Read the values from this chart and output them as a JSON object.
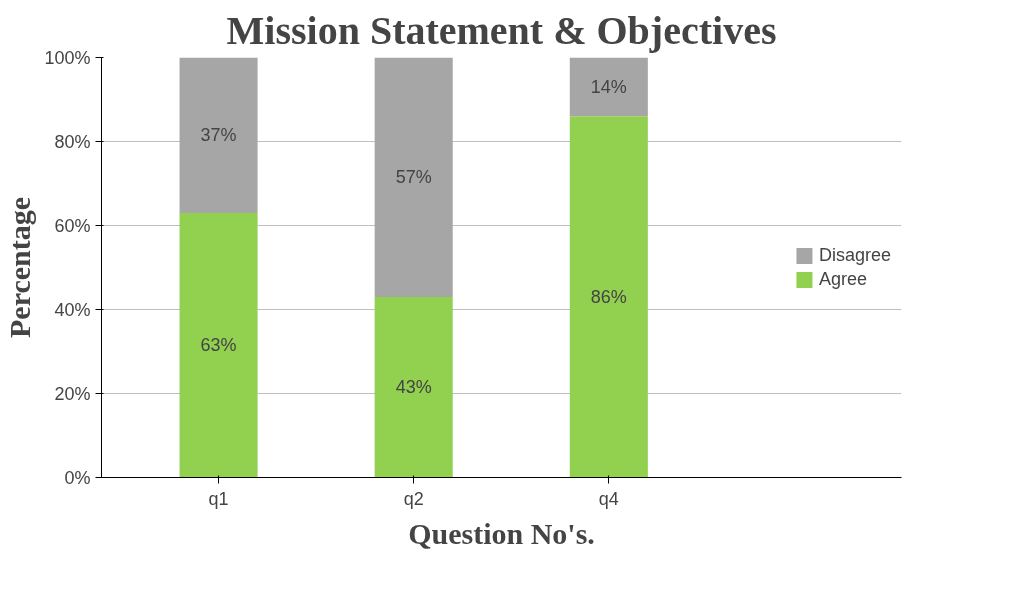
{
  "chart_data": {
    "type": "bar",
    "title": "Mission Statement & Objectives",
    "xlabel": "Question No's.",
    "ylabel": "Percentage",
    "categories": [
      "q1",
      "q2",
      "q4"
    ],
    "stacked": true,
    "series": [
      {
        "name": "Agree",
        "color": "#92d050",
        "values": [
          63,
          43,
          86
        ],
        "value_labels": [
          "63%",
          "43%",
          "86%"
        ]
      },
      {
        "name": "Disagree",
        "color": "#a6a6a6",
        "values": [
          37,
          57,
          14
        ],
        "value_labels": [
          "37%",
          "57%",
          "14%"
        ]
      }
    ],
    "ylim": [
      0,
      100
    ],
    "yticks": [
      {
        "value": 0,
        "label": "0%"
      },
      {
        "value": 20,
        "label": "20%"
      },
      {
        "value": 40,
        "label": "40%"
      },
      {
        "value": 60,
        "label": "60%"
      },
      {
        "value": 80,
        "label": "80%"
      },
      {
        "value": 100,
        "label": "100%"
      }
    ],
    "grid": "y",
    "legend": "right"
  }
}
